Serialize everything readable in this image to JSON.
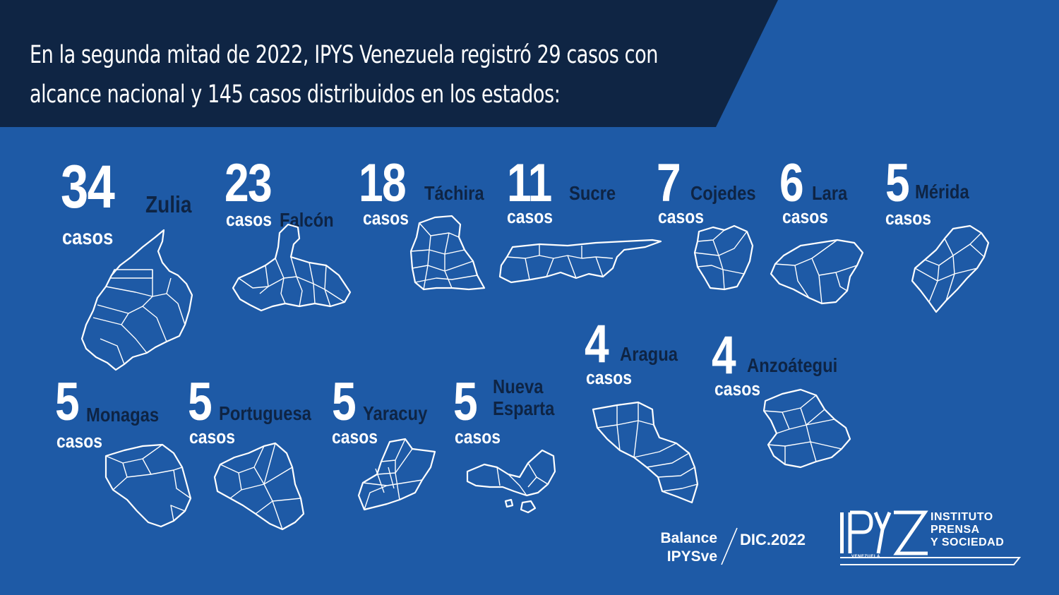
{
  "headline": {
    "line1": "En la segunda mitad de 2022, IPYS Venezuela registró 29 casos con",
    "line2": "alcance nacional y 145 casos distribuidos en los estados:"
  },
  "states": [
    {
      "count": "34",
      "unit": "casos",
      "name": "Zulia"
    },
    {
      "count": "23",
      "unit": "casos",
      "name": "Falcón"
    },
    {
      "count": "18",
      "unit": "casos",
      "name": "Táchira"
    },
    {
      "count": "11",
      "unit": "casos",
      "name": "Sucre"
    },
    {
      "count": "7",
      "unit": "casos",
      "name": "Cojedes"
    },
    {
      "count": "6",
      "unit": "casos",
      "name": "Lara"
    },
    {
      "count": "5",
      "unit": "casos",
      "name": "Mérida"
    },
    {
      "count": "4",
      "unit": "casos",
      "name": "Aragua"
    },
    {
      "count": "4",
      "unit": "casos",
      "name": "Anzoátegui"
    },
    {
      "count": "5",
      "unit": "casos",
      "name": "Monagas"
    },
    {
      "count": "5",
      "unit": "casos",
      "name": "Portuguesa"
    },
    {
      "count": "5",
      "unit": "casos",
      "name": "Yaracuy"
    },
    {
      "count": "5",
      "unit": "casos",
      "name": "Nueva",
      "name2": "Esparta"
    }
  ],
  "footer": {
    "balance_line1": "Balance",
    "balance_line2": "IPYSve",
    "date": "DIC.2022"
  },
  "logo": {
    "mark": "IPYS",
    "line1": "INSTITUTO",
    "line2": "PRENSA",
    "line3": "Y SOCIEDAD",
    "sub": "VENEZUELA"
  },
  "colors": {
    "background": "#1e5aa6",
    "banner": "#0f2544",
    "number": "#ffffff",
    "state_name": "#0e2444"
  }
}
